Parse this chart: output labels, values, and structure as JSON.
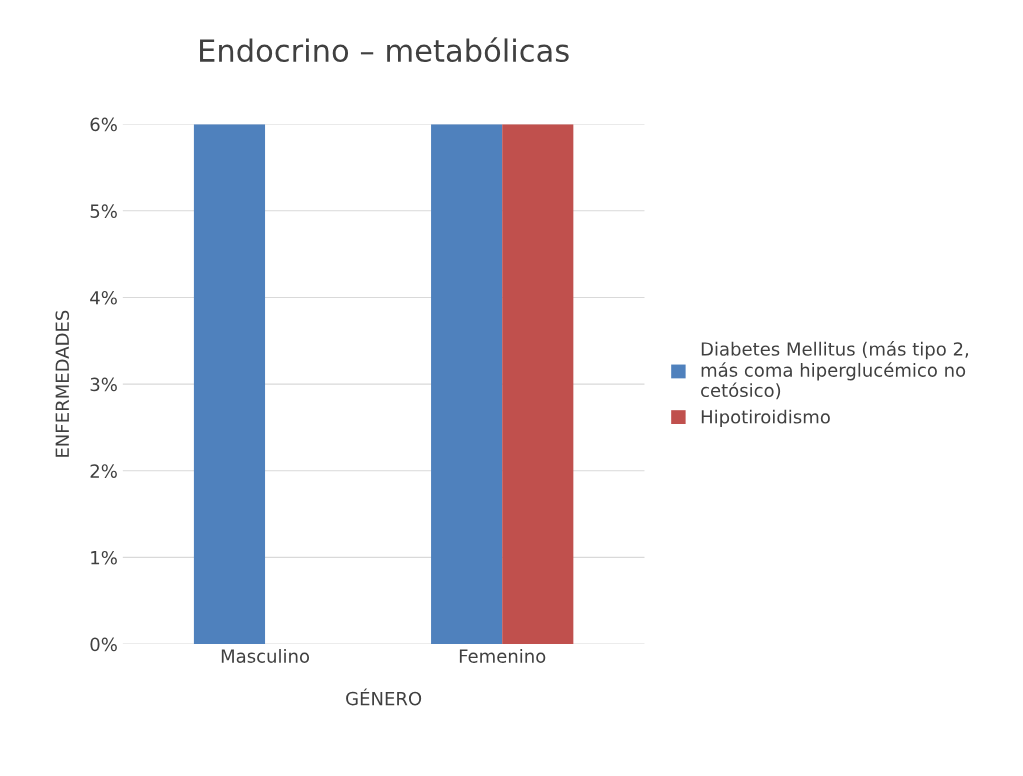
{
  "chart_data": {
    "type": "bar",
    "title": "Endocrino – metabólicas",
    "xlabel": "GÉNERO",
    "ylabel": "ENFERMEDADES",
    "categories": [
      "Masculino",
      "Femenino"
    ],
    "series": [
      {
        "name": "Diabetes Mellitus (más tipo 2,\nmás coma hiperglucémico no\ncetósico)",
        "color": "#4f81bd",
        "values": [
          6,
          6
        ]
      },
      {
        "name": "Hipotiroidismo",
        "color": "#c0504d",
        "values": [
          0,
          6
        ]
      }
    ],
    "ylim": [
      0,
      6
    ],
    "yticks": [
      {
        "value": 0,
        "label": "0%"
      },
      {
        "value": 1,
        "label": "1%"
      },
      {
        "value": 2,
        "label": "2%"
      },
      {
        "value": 3,
        "label": "3%"
      },
      {
        "value": 4,
        "label": "4%"
      },
      {
        "value": 5,
        "label": "5%"
      },
      {
        "value": 6,
        "label": "6%"
      }
    ],
    "grid": "y",
    "legend": "right"
  }
}
